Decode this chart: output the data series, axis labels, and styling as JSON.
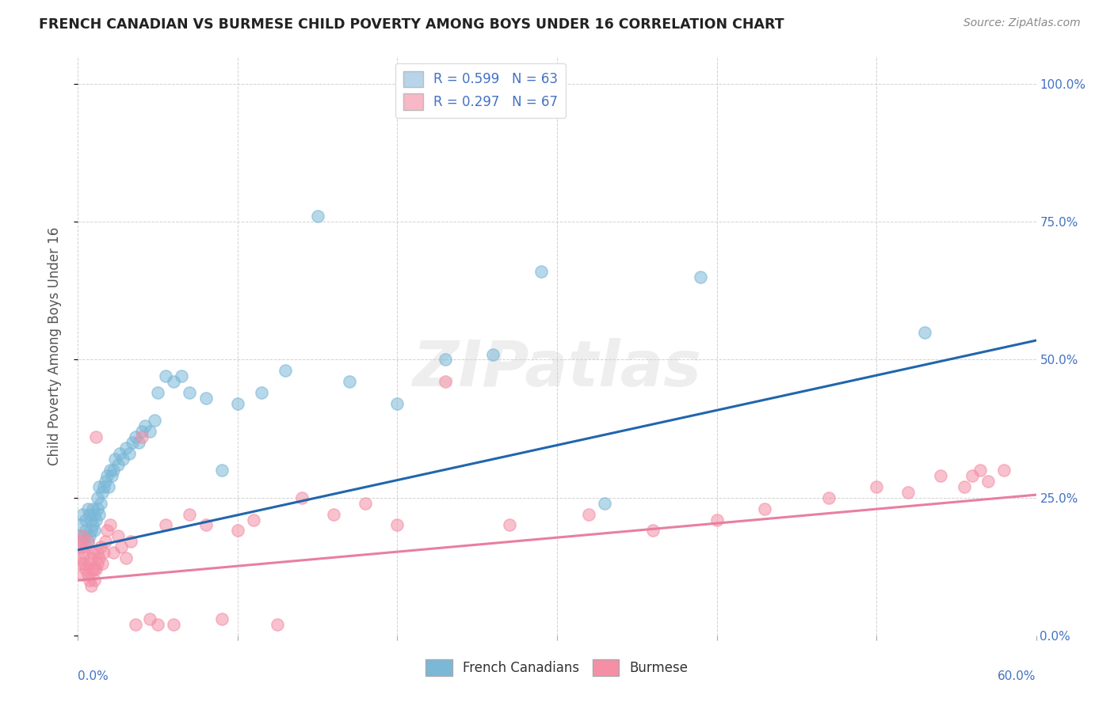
{
  "title": "FRENCH CANADIAN VS BURMESE CHILD POVERTY AMONG BOYS UNDER 16 CORRELATION CHART",
  "source": "Source: ZipAtlas.com",
  "ylabel": "Child Poverty Among Boys Under 16",
  "xlim": [
    0.0,
    0.6
  ],
  "ylim": [
    0.0,
    1.05
  ],
  "legend_entries": [
    {
      "label": "R = 0.599   N = 63",
      "color": "#b8d4ea"
    },
    {
      "label": "R = 0.297   N = 67",
      "color": "#f9b8c6"
    }
  ],
  "legend_labels_bottom": [
    "French Canadians",
    "Burmese"
  ],
  "watermark": "ZIPatlas",
  "blue_color": "#7bb8d8",
  "pink_color": "#f48fa6",
  "blue_line_color": "#2166ac",
  "pink_line_color": "#e87fa0",
  "blue_scatter": {
    "x": [
      0.001,
      0.002,
      0.003,
      0.003,
      0.004,
      0.005,
      0.005,
      0.006,
      0.006,
      0.007,
      0.007,
      0.008,
      0.008,
      0.009,
      0.009,
      0.01,
      0.01,
      0.011,
      0.012,
      0.012,
      0.013,
      0.013,
      0.014,
      0.015,
      0.016,
      0.017,
      0.018,
      0.019,
      0.02,
      0.021,
      0.022,
      0.023,
      0.025,
      0.026,
      0.028,
      0.03,
      0.032,
      0.034,
      0.036,
      0.038,
      0.04,
      0.042,
      0.045,
      0.048,
      0.05,
      0.055,
      0.06,
      0.065,
      0.07,
      0.08,
      0.09,
      0.1,
      0.115,
      0.13,
      0.15,
      0.17,
      0.2,
      0.23,
      0.26,
      0.29,
      0.33,
      0.39,
      0.53
    ],
    "y": [
      0.18,
      0.2,
      0.17,
      0.22,
      0.18,
      0.19,
      0.21,
      0.17,
      0.23,
      0.18,
      0.22,
      0.19,
      0.21,
      0.2,
      0.23,
      0.19,
      0.22,
      0.21,
      0.23,
      0.25,
      0.22,
      0.27,
      0.24,
      0.26,
      0.27,
      0.28,
      0.29,
      0.27,
      0.3,
      0.29,
      0.3,
      0.32,
      0.31,
      0.33,
      0.32,
      0.34,
      0.33,
      0.35,
      0.36,
      0.35,
      0.37,
      0.38,
      0.37,
      0.39,
      0.44,
      0.47,
      0.46,
      0.47,
      0.44,
      0.43,
      0.3,
      0.42,
      0.44,
      0.48,
      0.76,
      0.46,
      0.42,
      0.5,
      0.51,
      0.66,
      0.24,
      0.65,
      0.55
    ]
  },
  "pink_scatter": {
    "x": [
      0.001,
      0.001,
      0.002,
      0.002,
      0.003,
      0.003,
      0.004,
      0.004,
      0.005,
      0.005,
      0.006,
      0.006,
      0.007,
      0.007,
      0.008,
      0.008,
      0.009,
      0.009,
      0.01,
      0.01,
      0.011,
      0.011,
      0.012,
      0.012,
      0.013,
      0.014,
      0.015,
      0.016,
      0.017,
      0.018,
      0.02,
      0.022,
      0.025,
      0.027,
      0.03,
      0.033,
      0.036,
      0.04,
      0.045,
      0.05,
      0.055,
      0.06,
      0.07,
      0.08,
      0.09,
      0.1,
      0.11,
      0.125,
      0.14,
      0.16,
      0.18,
      0.2,
      0.23,
      0.27,
      0.32,
      0.36,
      0.4,
      0.43,
      0.47,
      0.5,
      0.52,
      0.54,
      0.555,
      0.56,
      0.565,
      0.57,
      0.58
    ],
    "y": [
      0.14,
      0.17,
      0.13,
      0.16,
      0.11,
      0.18,
      0.13,
      0.15,
      0.12,
      0.16,
      0.11,
      0.17,
      0.13,
      0.1,
      0.14,
      0.09,
      0.12,
      0.15,
      0.12,
      0.1,
      0.36,
      0.12,
      0.13,
      0.15,
      0.14,
      0.16,
      0.13,
      0.15,
      0.17,
      0.19,
      0.2,
      0.15,
      0.18,
      0.16,
      0.14,
      0.17,
      0.02,
      0.36,
      0.03,
      0.02,
      0.2,
      0.02,
      0.22,
      0.2,
      0.03,
      0.19,
      0.21,
      0.02,
      0.25,
      0.22,
      0.24,
      0.2,
      0.46,
      0.2,
      0.22,
      0.19,
      0.21,
      0.23,
      0.25,
      0.27,
      0.26,
      0.29,
      0.27,
      0.29,
      0.3,
      0.28,
      0.3
    ]
  },
  "blue_line": {
    "x0": 0.0,
    "x1": 0.6,
    "y0": 0.155,
    "y1": 0.535
  },
  "pink_line": {
    "x0": 0.0,
    "x1": 0.6,
    "y0": 0.1,
    "y1": 0.255
  },
  "bg_color": "#ffffff",
  "grid_color": "#cccccc",
  "right_tick_color": "#4472c4",
  "bottom_tick_color": "#4472c4"
}
